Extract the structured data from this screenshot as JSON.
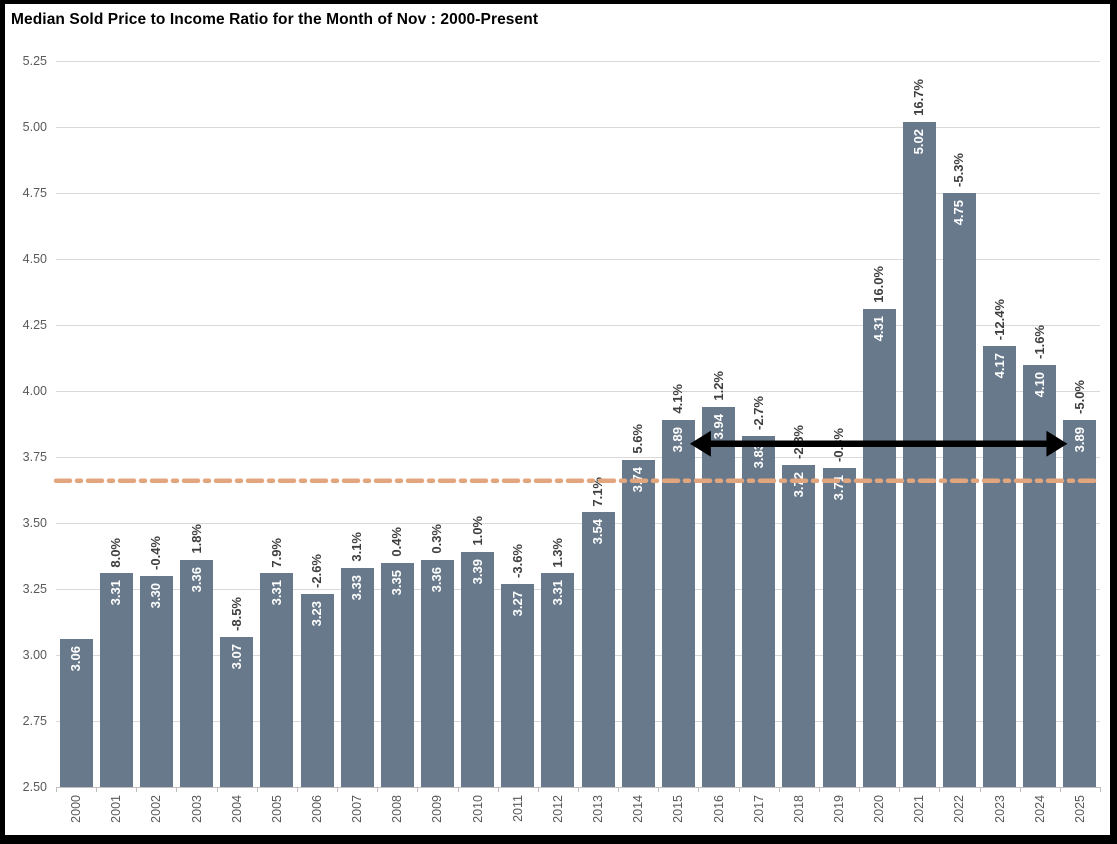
{
  "title": "Median Sold Price to Income Ratio for the Month of Nov : 2000-Present",
  "chart_data": {
    "type": "bar",
    "categories": [
      "2000",
      "2001",
      "2002",
      "2003",
      "2004",
      "2005",
      "2006",
      "2007",
      "2008",
      "2009",
      "2010",
      "2011",
      "2012",
      "2013",
      "2014",
      "2015",
      "2016",
      "2017",
      "2018",
      "2019",
      "2020",
      "2021",
      "2022",
      "2023",
      "2024",
      "2025"
    ],
    "values": [
      3.06,
      3.31,
      3.3,
      3.36,
      3.07,
      3.31,
      3.23,
      3.33,
      3.35,
      3.36,
      3.39,
      3.27,
      3.31,
      3.54,
      3.74,
      3.89,
      3.94,
      3.83,
      3.72,
      3.71,
      4.31,
      5.02,
      4.75,
      4.17,
      4.1,
      3.89
    ],
    "value_labels": [
      "3.06",
      "3.31",
      "3.30",
      "3.36",
      "3.07",
      "3.31",
      "3.23",
      "3.33",
      "3.35",
      "3.36",
      "3.39",
      "3.27",
      "3.31",
      "3.54",
      "3.74",
      "3.89",
      "3.94",
      "3.83",
      "3.72",
      "3.71",
      "4.31",
      "5.02",
      "4.75",
      "4.17",
      "4.10",
      "3.89"
    ],
    "pct_change_labels": [
      null,
      "8.0%",
      "-0.4%",
      "1.8%",
      "-8.5%",
      "7.9%",
      "-2.6%",
      "3.1%",
      "0.4%",
      "0.3%",
      "1.0%",
      "-3.6%",
      "1.3%",
      "7.1%",
      "5.6%",
      "4.1%",
      "1.2%",
      "-2.7%",
      "-2.8%",
      "-0.3%",
      "16.0%",
      "16.7%",
      "-5.3%",
      "-12.4%",
      "-1.6%",
      "-5.0%"
    ],
    "title": "Median Sold Price to Income Ratio for the Month of Nov : 2000-Present",
    "xlabel": "",
    "ylabel": "",
    "ylim": [
      2.5,
      5.25
    ],
    "ytick_step": 0.25,
    "grid": "horizontal-only",
    "legend": "none",
    "bar_color": "#68798B",
    "bar_label_color": "#FFFFFF",
    "pct_label_color": "#3F3F3F",
    "axis_label_color": "#595959",
    "gridline_color": "#D9D9D9",
    "average_line": {
      "value": 3.66,
      "color": "#E2A67E",
      "style": "dash-dot"
    },
    "arrow_annotation": {
      "from_year": "2015",
      "to_year": "2025",
      "at_value": 3.8,
      "color": "#000000",
      "type": "double-headed-horizontal"
    }
  }
}
